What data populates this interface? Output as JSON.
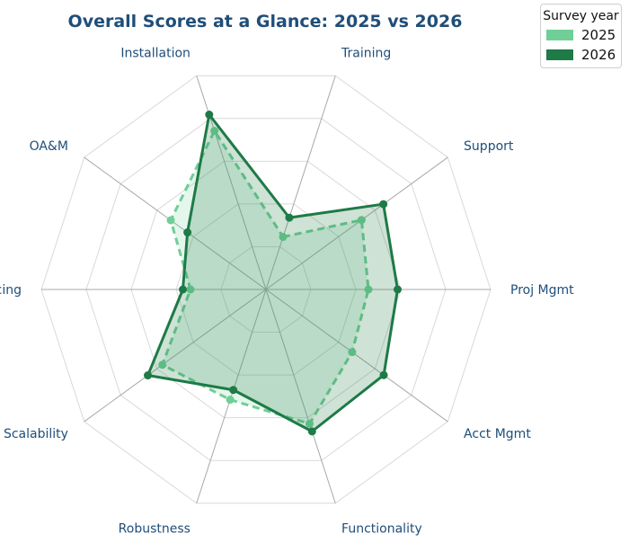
{
  "chart_data": {
    "type": "radar",
    "title": "Overall Scores at a Glance: 2025 vs 2026",
    "categories": [
      "Training",
      "Support",
      "Proj Mgmt",
      "Acct Mgmt",
      "Functionality",
      "Robustness",
      "Scalability",
      "Pricing",
      "OA&M",
      "Installation"
    ],
    "rlim": [
      0,
      5
    ],
    "grid": true,
    "series": [
      {
        "name": "2025",
        "values": [
          1.23,
          2.63,
          2.28,
          2.37,
          3.14,
          2.58,
          2.85,
          1.68,
          2.62,
          3.71
        ]
      },
      {
        "name": "2026",
        "values": [
          1.68,
          3.23,
          2.93,
          3.24,
          3.32,
          2.35,
          3.25,
          1.85,
          2.16,
          4.09
        ]
      }
    ],
    "legend": {
      "title": "Survey year",
      "placement": "top-right"
    }
  },
  "colors": {
    "title": "#1f4e79",
    "labels": "#1f4e79",
    "series_2025": "#6fcf97",
    "series_2026": "#1e7a46",
    "grid": "#d9d9d9",
    "spoke": "#a8a8a8"
  }
}
